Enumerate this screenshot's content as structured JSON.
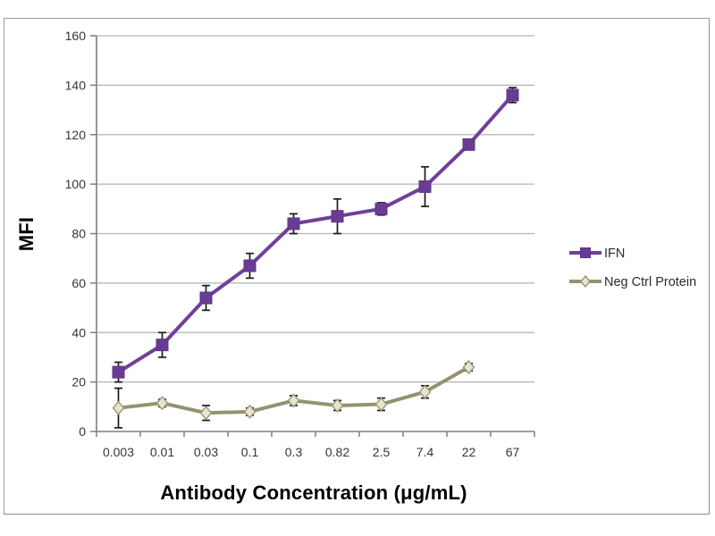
{
  "chart_data": {
    "type": "line",
    "title": "",
    "xlabel": "Antibody Concentration (μg/mL)",
    "ylabel": "MFI",
    "categories": [
      "0.003",
      "0.01",
      "0.03",
      "0.1",
      "0.3",
      "0.82",
      "2.5",
      "7.4",
      "22",
      "67"
    ],
    "ylim": [
      0,
      160
    ],
    "ytick_step": 20,
    "grid": true,
    "legend_position": "right",
    "series": [
      {
        "name": "IFN",
        "marker": "square",
        "line_color": "#6e4199",
        "marker_fill": "#693c94",
        "marker_stroke": "#5d3488",
        "values": [
          24,
          35,
          54,
          67,
          84,
          87,
          90,
          99,
          116,
          136
        ],
        "errors": [
          4,
          5,
          5,
          5,
          4,
          7,
          2.5,
          8,
          2,
          3
        ]
      },
      {
        "name": "Neg Ctrl Protein",
        "marker": "diamond",
        "line_color": "#94926f",
        "marker_fill": "#e7e4d4",
        "marker_stroke": "#9b996f",
        "values": [
          9.5,
          11.5,
          7.5,
          8,
          12.5,
          10.5,
          11,
          16,
          26
        ],
        "errors": [
          8,
          1.5,
          3,
          1.5,
          2,
          2,
          2.5,
          2.5,
          1.5
        ]
      }
    ],
    "error_bar_color": "#1a1a1a",
    "gridline_color": "#b3b3b3",
    "axis_color": "#7f7f7f",
    "frame_color": "#9c9c9c",
    "background_color": "#ffffff"
  }
}
